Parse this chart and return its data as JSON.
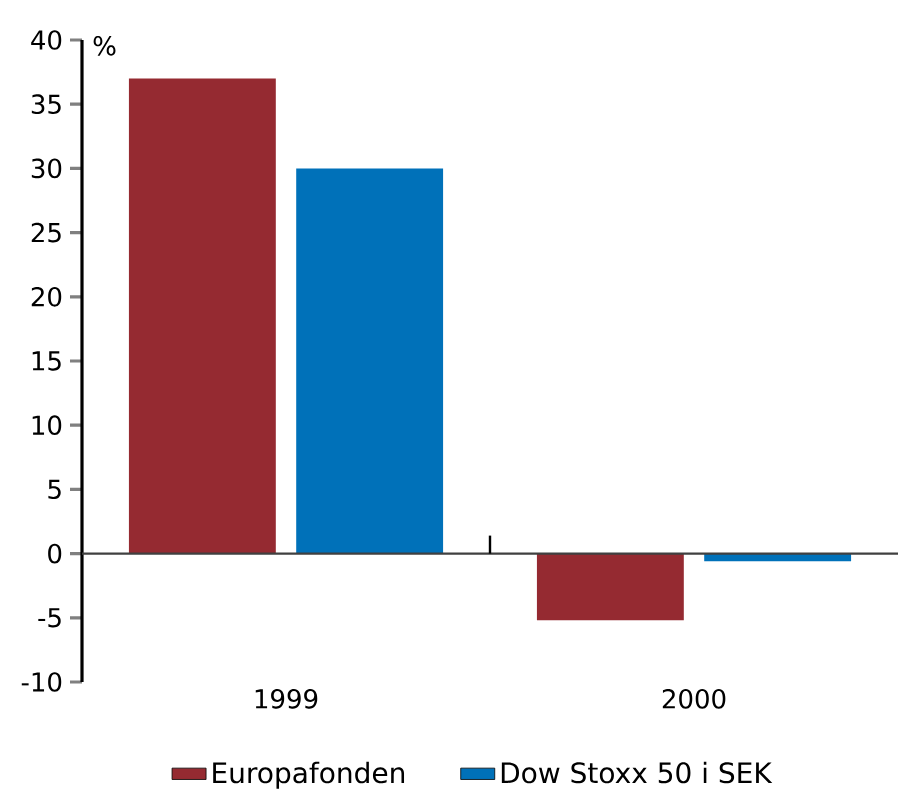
{
  "chart_data": {
    "type": "bar",
    "ylabel": "%",
    "categories": [
      "1999",
      "2000"
    ],
    "series": [
      {
        "name": "Europafonden",
        "color": "#952a31",
        "values": [
          37.0,
          -5.2
        ]
      },
      {
        "name": "Dow Stoxx 50 i SEK",
        "color": "#0071b9",
        "values": [
          30.0,
          -0.6
        ]
      }
    ],
    "ylim": [
      -10,
      40
    ],
    "yticks": [
      -10,
      -5,
      0,
      5,
      10,
      15,
      20,
      25,
      30,
      35,
      40
    ],
    "legend": "bottom"
  }
}
